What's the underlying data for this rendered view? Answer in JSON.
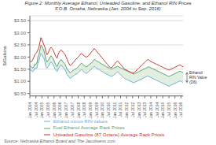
{
  "chart_data": {
    "type": "line",
    "title": "Figure 2: Monthly Average Ethanol, Unleaded Gasoline, and Ethanol RIN Prices",
    "subtitle": "F.O.B. Omaha, Nebraska (Jan. 2004 to Sep. 2016)",
    "ylabel": "$/Gallons",
    "source": "Source: Nebraska Ethanol Board and The Jacobsens.com",
    "annotation": "Ethanol\nRIN Value\n(D6)",
    "categories": [
      "Jan\n2004",
      null,
      null,
      null,
      null,
      null,
      "Jul\n2004",
      null,
      null,
      null,
      null,
      null,
      "Jan\n2005",
      null,
      null,
      null,
      null,
      null,
      "Jul\n2005",
      null,
      null,
      null,
      null,
      null,
      "Jan\n2006",
      null,
      null,
      null,
      null,
      null,
      "Jul\n2006",
      null,
      null,
      null,
      null,
      null,
      "Jan\n2007",
      null,
      null,
      null,
      null,
      null,
      "Jul\n2007",
      null,
      null,
      null,
      null,
      null,
      "Jan\n2008",
      null,
      null,
      null,
      null,
      null,
      "Jul\n2008",
      null,
      null,
      null,
      null,
      null,
      "Jan\n2009",
      null,
      null,
      null,
      null,
      null,
      "Jul\n2009",
      null,
      null,
      null,
      null,
      null,
      "Jan\n2010",
      null,
      null,
      null,
      null,
      null,
      "Jul\n2010",
      null,
      null,
      null,
      null,
      null,
      "Jan\n2011",
      null,
      null,
      null,
      null,
      null,
      "Jul\n2011",
      null,
      null,
      null,
      null,
      null,
      "Jan\n2012",
      null,
      null,
      null,
      null,
      null,
      "Jul\n2012",
      null,
      null,
      null,
      null,
      null,
      "Jan\n2013",
      null,
      null,
      null,
      null,
      null,
      "Jul\n2013",
      null,
      null,
      null,
      null,
      null,
      "Jan\n2014",
      null,
      null,
      null,
      null,
      null,
      "Jul\n2014",
      null,
      null,
      null,
      null,
      null,
      "Jan\n2015",
      null,
      null,
      null,
      null,
      null,
      "Jul\n2015",
      null,
      null,
      null,
      null,
      null,
      "Jan\n2016",
      null,
      null,
      null,
      null,
      null,
      "Jul\n2016",
      null,
      null
    ],
    "series": [
      {
        "name": "Fuel Ethanol Average Rack Prices",
        "color": "#5a9e6f",
        "values": [
          1.65,
          1.6,
          1.58,
          1.55,
          1.6,
          1.72,
          1.7,
          1.75,
          2.0,
          2.1,
          2.3,
          2.5,
          2.45,
          2.35,
          2.25,
          2.1,
          1.9,
          1.8,
          1.85,
          1.9,
          2.0,
          2.05,
          2.0,
          1.95,
          1.85,
          1.75,
          1.65,
          1.6,
          1.7,
          1.8,
          1.85,
          1.9,
          1.85,
          1.8,
          1.75,
          1.7,
          1.6,
          1.5,
          1.45,
          1.4,
          1.35,
          1.38,
          1.42,
          1.45,
          1.48,
          1.5,
          1.52,
          1.55,
          1.6,
          1.65,
          1.7,
          1.75,
          1.72,
          1.68,
          1.65,
          1.62,
          1.6,
          1.62,
          1.65,
          1.7,
          1.72,
          1.75,
          1.8,
          1.85,
          1.9,
          1.88,
          1.85,
          1.82,
          1.8,
          1.78,
          1.75,
          1.72,
          1.7,
          1.68,
          1.65,
          1.62,
          1.6,
          1.58,
          1.56,
          1.54,
          1.52,
          1.5,
          1.52,
          1.54,
          1.56,
          1.58,
          1.6,
          1.62,
          1.6,
          1.58,
          1.56,
          1.54,
          1.52,
          1.5,
          1.48,
          1.46,
          1.44,
          1.42,
          1.4,
          1.38,
          1.36,
          1.34,
          1.32,
          1.3,
          1.32,
          1.34,
          1.36,
          1.38,
          1.4,
          1.42,
          1.44,
          1.46,
          1.48,
          1.5,
          1.52,
          1.54,
          1.56,
          1.58,
          1.6,
          1.58,
          1.56,
          1.54,
          1.52,
          1.5,
          1.48,
          1.46,
          1.44,
          1.42,
          1.4,
          1.38,
          1.36,
          1.34,
          1.32,
          1.3,
          1.28,
          1.26,
          1.24,
          1.22,
          1.2,
          1.22,
          1.24,
          1.26,
          1.28,
          1.3,
          1.32,
          1.34,
          1.36,
          1.38,
          1.4,
          1.42,
          1.4,
          1.38,
          1.36
        ]
      },
      {
        "name": "Unleaded Gasoline (87 Octane) Average Rack Prices",
        "color": "#c0392b",
        "values": [
          1.85,
          1.8,
          1.82,
          1.9,
          2.0,
          2.1,
          2.15,
          2.2,
          2.3,
          2.4,
          2.6,
          2.8,
          2.7,
          2.6,
          2.5,
          2.4,
          2.2,
          2.1,
          2.15,
          2.25,
          2.35,
          2.4,
          2.35,
          2.3,
          2.2,
          2.1,
          2.0,
          1.95,
          2.1,
          2.2,
          2.25,
          2.3,
          2.25,
          2.2,
          2.15,
          2.1,
          2.0,
          1.9,
          1.8,
          1.72,
          1.65,
          1.68,
          1.72,
          1.78,
          1.82,
          1.88,
          1.92,
          1.95,
          2.0,
          2.05,
          2.1,
          2.15,
          2.12,
          2.08,
          2.05,
          2.02,
          2.0,
          2.02,
          2.05,
          2.1,
          2.15,
          2.2,
          2.25,
          2.3,
          2.35,
          2.3,
          2.25,
          2.2,
          2.15,
          2.1,
          2.05,
          2.0,
          1.95,
          1.9,
          1.85,
          1.8,
          1.75,
          1.7,
          1.65,
          1.6,
          1.58,
          1.56,
          1.6,
          1.65,
          1.7,
          1.75,
          1.8,
          1.85,
          1.8,
          1.75,
          1.7,
          1.65,
          1.6,
          1.55,
          1.5,
          1.48,
          1.46,
          1.44,
          1.42,
          1.4,
          1.38,
          1.36,
          1.35,
          1.34,
          1.38,
          1.42,
          1.46,
          1.5,
          1.54,
          1.58,
          1.62,
          1.66,
          1.7,
          1.74,
          1.78,
          1.82,
          1.86,
          1.9,
          1.88,
          1.85,
          1.82,
          1.8,
          1.78,
          1.76,
          1.74,
          1.72,
          1.7,
          1.68,
          1.66,
          1.64,
          1.62,
          1.6,
          1.58,
          1.56,
          1.54,
          1.52,
          1.5,
          1.48,
          1.46,
          1.48,
          1.5,
          1.52,
          1.54,
          1.56,
          1.58,
          1.6,
          1.62,
          1.64,
          1.66,
          1.68,
          1.65,
          1.62,
          1.6
        ]
      },
      {
        "name": "Ethanol minus RIN values",
        "color": "#6baed6",
        "values": [
          1.5,
          1.45,
          1.43,
          1.4,
          1.45,
          1.55,
          1.52,
          1.55,
          1.75,
          1.85,
          2.0,
          2.15,
          2.1,
          2.0,
          1.95,
          1.8,
          1.6,
          1.55,
          1.6,
          1.65,
          1.75,
          1.8,
          1.75,
          1.7,
          1.6,
          1.52,
          1.45,
          1.4,
          1.5,
          1.58,
          1.62,
          1.68,
          1.62,
          1.58,
          1.52,
          1.48,
          1.38,
          1.28,
          1.22,
          1.18,
          1.12,
          1.15,
          1.2,
          1.22,
          1.25,
          1.28,
          1.3,
          1.32,
          1.36,
          1.4,
          1.44,
          1.48,
          1.46,
          1.42,
          1.38,
          1.35,
          1.32,
          1.35,
          1.38,
          1.42,
          1.46,
          1.5,
          1.55,
          1.58,
          1.62,
          1.58,
          1.55,
          1.52,
          1.5,
          1.48,
          1.45,
          1.42,
          1.4,
          1.38,
          1.35,
          1.32,
          1.3,
          1.28,
          1.26,
          1.24,
          1.22,
          1.2,
          1.22,
          1.25,
          1.28,
          1.32,
          1.36,
          1.4,
          1.36,
          1.32,
          1.28,
          1.24,
          1.2,
          1.16,
          1.12,
          1.1,
          1.08,
          1.06,
          1.04,
          1.02,
          1.0,
          0.98,
          0.96,
          0.94,
          0.96,
          0.98,
          1.0,
          1.02,
          1.04,
          1.06,
          1.08,
          1.1,
          1.12,
          1.14,
          1.16,
          1.18,
          1.2,
          1.22,
          1.2,
          1.18,
          1.16,
          1.14,
          1.12,
          1.1,
          1.08,
          1.06,
          1.04,
          1.02,
          1.0,
          0.98,
          0.96,
          0.94,
          0.92,
          0.9,
          0.88,
          0.86,
          0.84,
          0.82,
          0.8,
          0.82,
          0.84,
          0.86,
          0.88,
          0.9,
          0.92,
          0.94,
          0.96,
          0.98,
          1.0,
          1.02,
          1.0,
          0.98,
          0.96
        ]
      }
    ],
    "fill_between": {
      "from": "Ethanol minus RIN values",
      "to": "Fuel Ethanol Average Rack Prices",
      "color": "#d4e8d4"
    },
    "ylim": [
      0.4,
      3.7
    ],
    "yticks": [
      {
        "value": 0.5,
        "label": "$0.50"
      },
      {
        "value": 1.0,
        "label": "$1.00"
      },
      {
        "value": 1.5,
        "label": "$1.50"
      },
      {
        "value": 2.0,
        "label": "$2.00"
      },
      {
        "value": 2.5,
        "label": "$2.50"
      },
      {
        "value": 3.0,
        "label": "$3.00"
      },
      {
        "value": 3.5,
        "label": "$3.50"
      }
    ],
    "grid": "y",
    "legend": "bottom"
  }
}
